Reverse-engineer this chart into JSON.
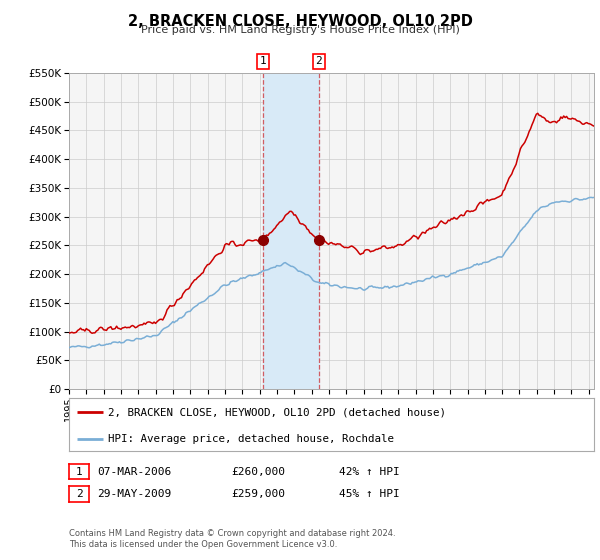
{
  "title": "2, BRACKEN CLOSE, HEYWOOD, OL10 2PD",
  "subtitle": "Price paid vs. HM Land Registry's House Price Index (HPI)",
  "legend_line1": "2, BRACKEN CLOSE, HEYWOOD, OL10 2PD (detached house)",
  "legend_line2": "HPI: Average price, detached house, Rochdale",
  "transaction1_date": "07-MAR-2006",
  "transaction1_price": "£260,000",
  "transaction1_hpi": "42% ↑ HPI",
  "transaction2_date": "29-MAY-2009",
  "transaction2_price": "£259,000",
  "transaction2_hpi": "45% ↑ HPI",
  "footer1": "Contains HM Land Registry data © Crown copyright and database right 2024.",
  "footer2": "This data is licensed under the Open Government Licence v3.0.",
  "ylim": [
    0,
    550000
  ],
  "yticks": [
    0,
    50000,
    100000,
    150000,
    200000,
    250000,
    300000,
    350000,
    400000,
    450000,
    500000,
    550000
  ],
  "ytick_labels": [
    "£0",
    "£50K",
    "£100K",
    "£150K",
    "£200K",
    "£250K",
    "£300K",
    "£350K",
    "£400K",
    "£450K",
    "£500K",
    "£550K"
  ],
  "xlim_start": 1995.0,
  "xlim_end": 2025.3,
  "xtick_years": [
    1995,
    1996,
    1997,
    1998,
    1999,
    2000,
    2001,
    2002,
    2003,
    2004,
    2005,
    2006,
    2007,
    2008,
    2009,
    2010,
    2011,
    2012,
    2013,
    2014,
    2015,
    2016,
    2017,
    2018,
    2019,
    2020,
    2021,
    2022,
    2023,
    2024,
    2025
  ],
  "property_color": "#cc0000",
  "hpi_color": "#7aaed6",
  "shade_color": "#d8eaf7",
  "transaction1_x": 2006.18,
  "transaction2_x": 2009.41,
  "transaction1_y": 260000,
  "transaction2_y": 259000,
  "background_color": "#f5f5f5",
  "grid_color": "#cccccc"
}
